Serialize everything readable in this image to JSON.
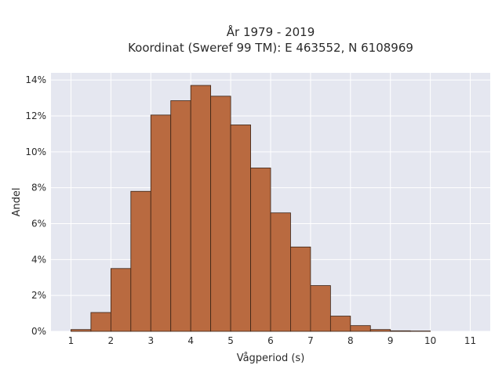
{
  "chart_data": {
    "type": "bar",
    "title_line1": "År 1979 - 2019",
    "title_line2": "Koordinat (Sweref 99 TM): E 463552, N 6108969",
    "xlabel": "Vågperiod (s)",
    "ylabel": "Andel",
    "bin_width": 0.5,
    "bins": [
      {
        "x_start": 1.0,
        "value": 0.1
      },
      {
        "x_start": 1.5,
        "value": 1.05
      },
      {
        "x_start": 2.0,
        "value": 3.5
      },
      {
        "x_start": 2.5,
        "value": 7.8
      },
      {
        "x_start": 3.0,
        "value": 12.05
      },
      {
        "x_start": 3.5,
        "value": 12.85
      },
      {
        "x_start": 4.0,
        "value": 13.7
      },
      {
        "x_start": 4.5,
        "value": 13.1
      },
      {
        "x_start": 5.0,
        "value": 11.5
      },
      {
        "x_start": 5.5,
        "value": 9.1
      },
      {
        "x_start": 6.0,
        "value": 6.6
      },
      {
        "x_start": 6.5,
        "value": 4.7
      },
      {
        "x_start": 7.0,
        "value": 2.55
      },
      {
        "x_start": 7.5,
        "value": 0.85
      },
      {
        "x_start": 8.0,
        "value": 0.32
      },
      {
        "x_start": 8.5,
        "value": 0.1
      },
      {
        "x_start": 9.0,
        "value": 0.03
      },
      {
        "x_start": 9.5,
        "value": 0.02
      }
    ],
    "x_ticks": [
      1,
      2,
      3,
      4,
      5,
      6,
      7,
      8,
      9,
      10,
      11
    ],
    "x_tick_labels": [
      "1",
      "2",
      "3",
      "4",
      "5",
      "6",
      "7",
      "8",
      "9",
      "10",
      "11"
    ],
    "y_ticks": [
      0,
      2,
      4,
      6,
      8,
      10,
      12,
      14
    ],
    "y_tick_labels": [
      "0%",
      "2%",
      "4%",
      "6%",
      "8%",
      "10%",
      "12%",
      "14%"
    ],
    "xlim": [
      0.5,
      11.5
    ],
    "ylim": [
      0,
      14.4
    ],
    "grid": true,
    "colors": {
      "bar_fill": "#b96a40",
      "bar_edge": "#3a2214",
      "plot_background": "#e5e7f0",
      "grid": "#ffffff"
    }
  }
}
